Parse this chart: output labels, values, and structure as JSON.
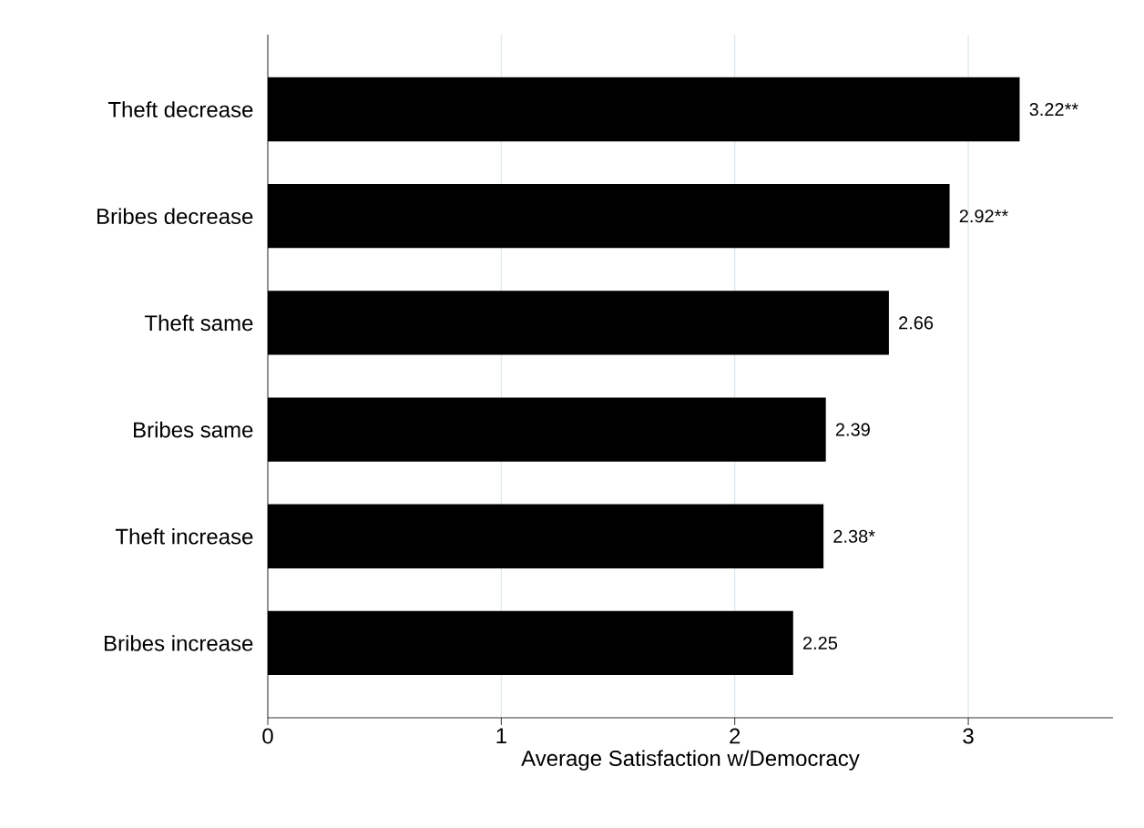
{
  "chart_data": {
    "type": "bar",
    "orientation": "horizontal",
    "xlabel": "Average Satisfaction w/Democracy",
    "categories": [
      "Theft decrease",
      "Bribes decrease",
      "Theft same",
      "Bribes same",
      "Theft increase",
      "Bribes increase"
    ],
    "values": [
      3.22,
      2.92,
      2.66,
      2.39,
      2.38,
      2.25
    ],
    "value_labels": [
      "3.22**",
      "2.92**",
      "2.66",
      "2.39",
      "2.38*",
      "2.25"
    ],
    "color": "#000000",
    "xlim": [
      0,
      3.62
    ],
    "xticks": [
      0,
      1,
      2,
      3
    ],
    "grid": "x"
  }
}
